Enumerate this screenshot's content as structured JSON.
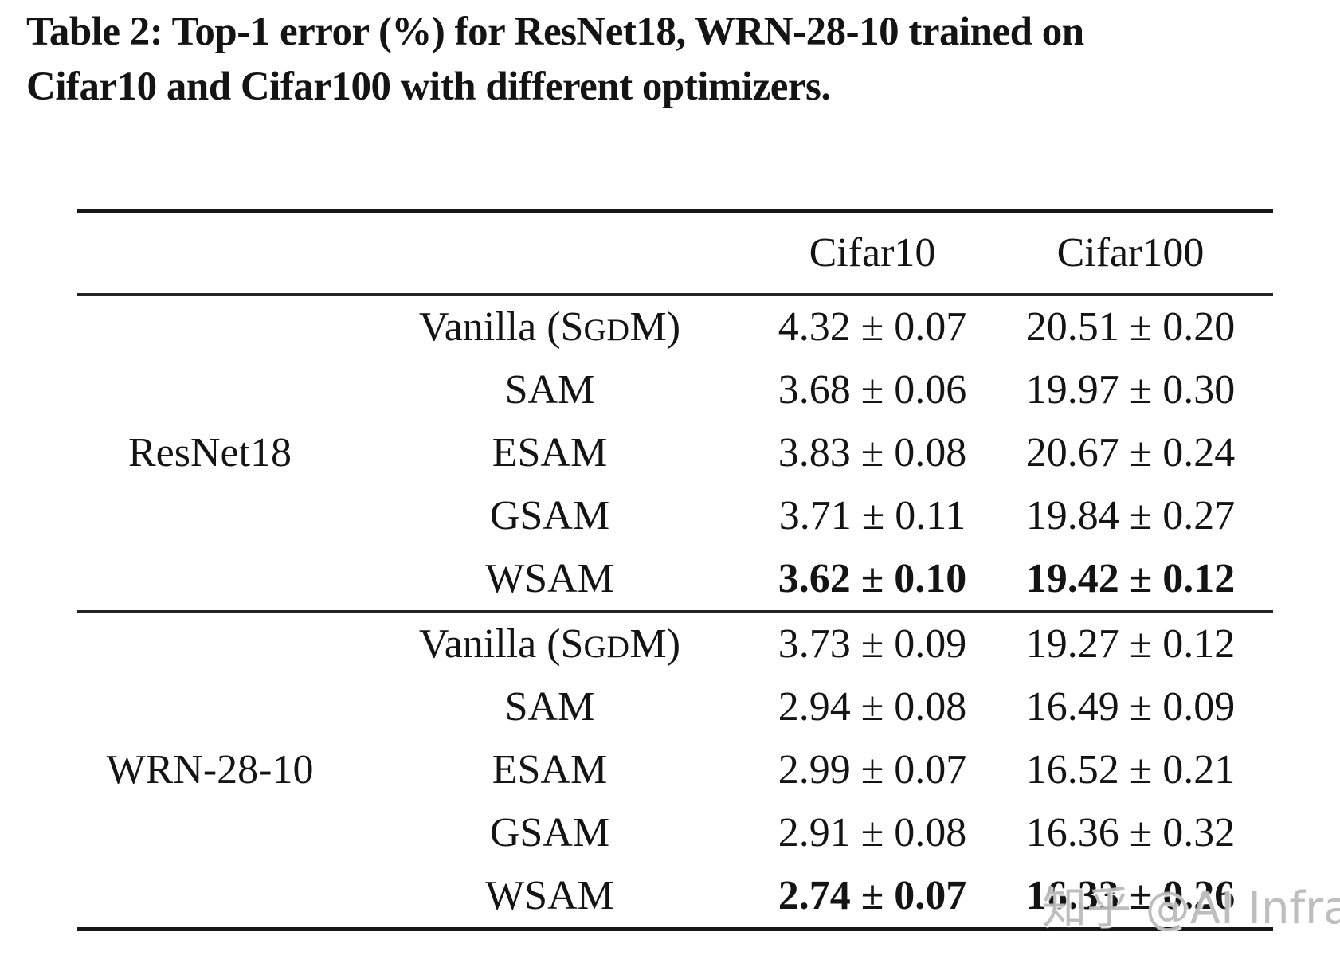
{
  "caption": {
    "lines": [
      "Table 2: Top-1 error (%) for ResNet18, WRN-28-10 trained on",
      "Cifar10 and Cifar100 with different optimizers."
    ]
  },
  "table": {
    "header": {
      "model": "",
      "optimizer": "",
      "cifar10": "Cifar10",
      "cifar100": "Cifar100"
    },
    "groups": [
      {
        "model": "ResNet18",
        "rows": [
          {
            "optimizer": "Vanilla (SGDM)",
            "cifar10": "4.32 ± 0.07",
            "cifar100": "20.51 ± 0.20",
            "bold": false
          },
          {
            "optimizer": "SAM",
            "cifar10": "3.68 ± 0.06",
            "cifar100": "19.97 ± 0.30",
            "bold": false
          },
          {
            "optimizer": "ESAM",
            "cifar10": "3.83 ± 0.08",
            "cifar100": "20.67 ± 0.24",
            "bold": false
          },
          {
            "optimizer": "GSAM",
            "cifar10": "3.71 ± 0.11",
            "cifar100": "19.84 ± 0.27",
            "bold": false
          },
          {
            "optimizer": "WSAM",
            "cifar10": "3.62 ± 0.10",
            "cifar100": "19.42 ± 0.12",
            "bold": true
          }
        ]
      },
      {
        "model": "WRN-28-10",
        "rows": [
          {
            "optimizer": "Vanilla (SGDM)",
            "cifar10": "3.73 ± 0.09",
            "cifar100": "19.27 ± 0.12",
            "bold": false
          },
          {
            "optimizer": "SAM",
            "cifar10": "2.94 ± 0.08",
            "cifar100": "16.49 ± 0.09",
            "bold": false
          },
          {
            "optimizer": "ESAM",
            "cifar10": "2.99 ± 0.07",
            "cifar100": "16.52 ± 0.21",
            "bold": false
          },
          {
            "optimizer": "GSAM",
            "cifar10": "2.91 ± 0.08",
            "cifar100": "16.36 ± 0.32",
            "bold": false
          },
          {
            "optimizer": "WSAM",
            "cifar10": "2.74 ± 0.07",
            "cifar100": "16.33 ± 0.26",
            "bold": true
          }
        ]
      }
    ]
  },
  "watermark": {
    "text": "知乎 @AI Infra",
    "color": "#b8b8b8"
  }
}
